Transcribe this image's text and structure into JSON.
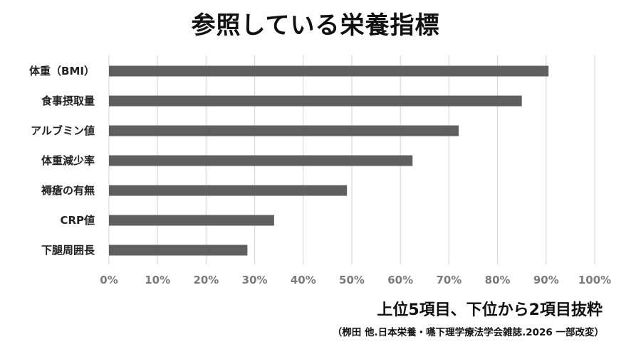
{
  "title": "参照している栄養指標",
  "note": "上位5項目、下位から2項目抜粋",
  "source": "（栁田 他.日本栄養・嚥下理学療法学会雑誌.2026 一部改変）",
  "colors": {
    "bar": "#5f5f5f",
    "grid": "#d9d9d9"
  },
  "chart_data": {
    "type": "bar",
    "orientation": "horizontal",
    "title": "参照している栄養指標",
    "categories": [
      "体重（BMI）",
      "食事摂取量",
      "アルブミン値",
      "体重減少率",
      "褥瘡の有無",
      "CRP値",
      "下腿周囲長"
    ],
    "values": [
      90.5,
      85,
      72,
      62.5,
      49,
      34,
      28.5
    ],
    "unit": "%",
    "xlim": [
      0,
      100
    ],
    "ticks": [
      "0%",
      "10%",
      "20%",
      "30%",
      "40%",
      "50%",
      "60%",
      "70%",
      "80%",
      "90%",
      "100%"
    ],
    "grid": true,
    "legend": false
  }
}
